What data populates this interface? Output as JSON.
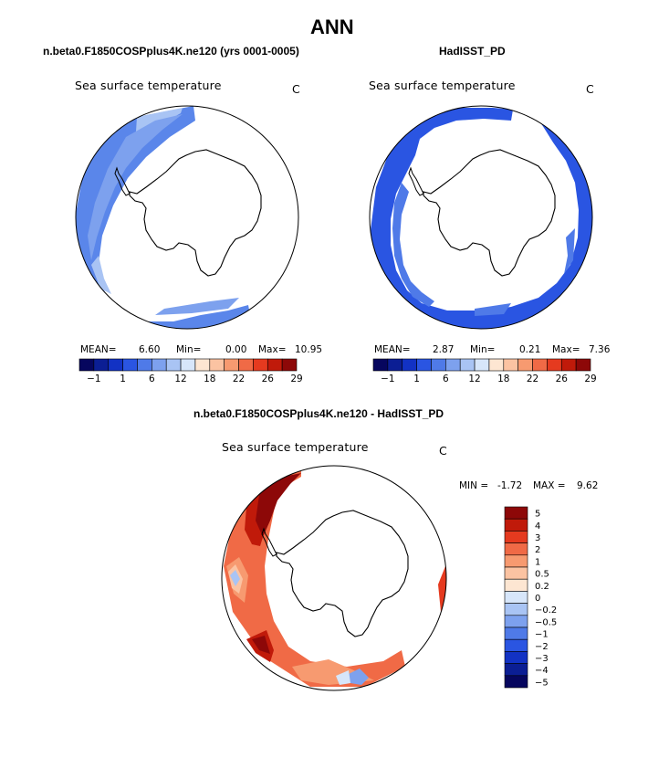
{
  "figure": {
    "title": "ANN",
    "left_subtitle": "n.beta0.F1850COSPplus4K.ne120 (yrs 0001-0005)",
    "right_subtitle": "HadISST_PD",
    "diff_subtitle": "n.beta0.F1850COSPplus4K.ne120 - HadISST_PD"
  },
  "panels": {
    "left": {
      "title": "Sea surface temperature",
      "units": "C",
      "mean_label": "MEAN=",
      "mean": "6.60",
      "min_label": "Min=",
      "min": "0.00",
      "max_label": "Max=",
      "max": "10.95"
    },
    "right": {
      "title": "Sea surface temperature",
      "units": "C",
      "mean_label": "MEAN=",
      "mean": "2.87",
      "min_label": "Min=",
      "min": "0.21",
      "max_label": "Max=",
      "max": "7.36"
    },
    "diff": {
      "title": "Sea surface temperature",
      "units": "C",
      "min_label": "MIN =",
      "min": "-1.72",
      "max_label": "MAX =",
      "max": "9.62"
    }
  },
  "colorbars": {
    "main": {
      "colors": [
        "#06065e",
        "#0b1e94",
        "#1232c4",
        "#2a55e2",
        "#4f7ae8",
        "#7da1ee",
        "#a9c4f4",
        "#d7e6fa",
        "#fde6d2",
        "#fbc3a2",
        "#f79a70",
        "#f06a46",
        "#e53a1f",
        "#c01a0a",
        "#8d0808"
      ],
      "tick_labels": [
        "-1",
        "1",
        "6",
        "12",
        "18",
        "22",
        "26",
        "29"
      ]
    },
    "diff": {
      "colors": [
        "#06065e",
        "#0b1e94",
        "#1232c4",
        "#2a55e2",
        "#4f7ae8",
        "#7da1ee",
        "#a9c4f4",
        "#d7e6fa",
        "#fde6d2",
        "#fbc3a2",
        "#f79a70",
        "#f06a46",
        "#e53a1f",
        "#c01a0a",
        "#8d0808"
      ],
      "tick_labels": [
        "5",
        "4",
        "3",
        "2",
        "1",
        "0.5",
        "0.2",
        "0",
        "-0.2",
        "-0.5",
        "-1",
        "-2",
        "-3",
        "-4",
        "-5"
      ]
    }
  },
  "chart_data": [
    {
      "type": "heatmap",
      "title": "Sea surface temperature",
      "projection": "south polar stereographic",
      "units": "C",
      "levels": [
        -1,
        1,
        6,
        12,
        18,
        22,
        26,
        29
      ],
      "mean": 6.6,
      "min": 0.0,
      "max": 10.95
    },
    {
      "type": "heatmap",
      "title": "Sea surface temperature",
      "projection": "south polar stereographic",
      "units": "C",
      "levels": [
        -1,
        1,
        6,
        12,
        18,
        22,
        26,
        29
      ],
      "mean": 2.87,
      "min": 0.21,
      "max": 7.36
    },
    {
      "type": "heatmap",
      "title": "Sea surface temperature",
      "projection": "south polar stereographic",
      "units": "C",
      "levels": [
        -5,
        -4,
        -3,
        -2,
        -1,
        -0.5,
        -0.2,
        0,
        0.2,
        0.5,
        1,
        2,
        3,
        4,
        5
      ],
      "min": -1.72,
      "max": 9.62
    }
  ]
}
